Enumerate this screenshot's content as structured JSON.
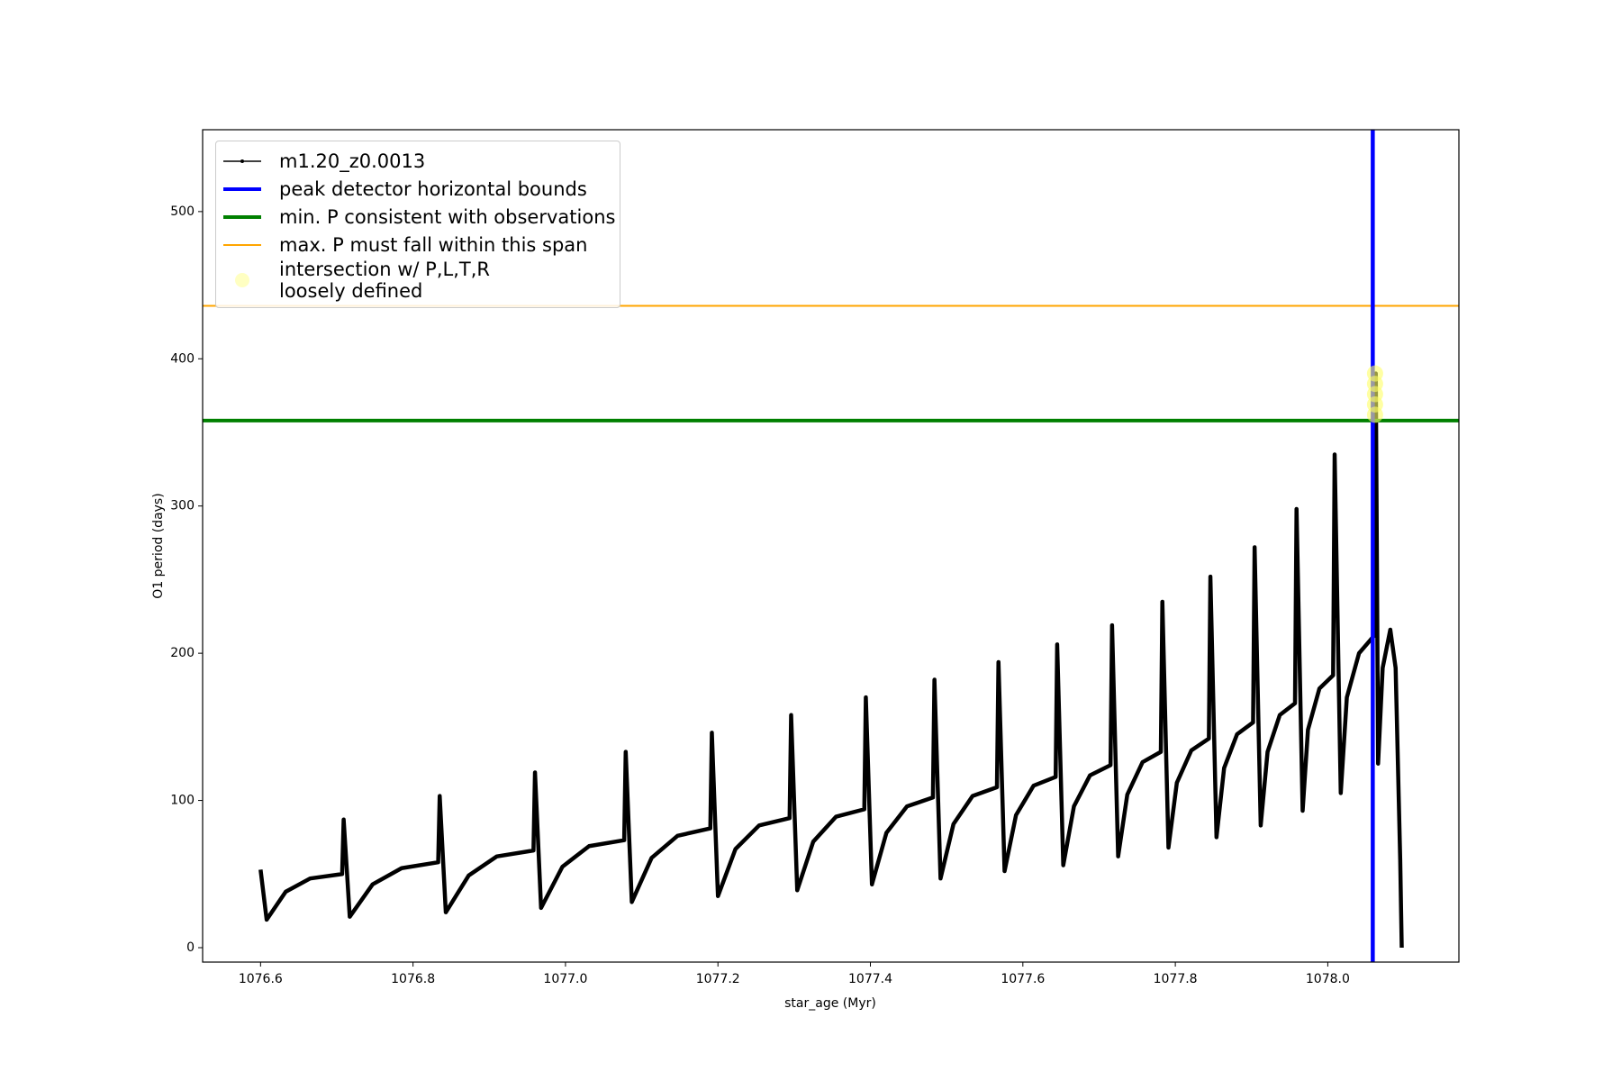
{
  "chart_data": {
    "type": "line",
    "xlabel": "star_age (Myr)",
    "ylabel": "O1 period (days)",
    "xlim": [
      1076.524,
      1078.172
    ],
    "ylim": [
      -9.8,
      555.6
    ],
    "xticks": [
      1076.6,
      1076.8,
      {
        "value": 1077,
        "label": "1077.0"
      },
      1077.2,
      1077.4,
      1077.6,
      1077.8,
      {
        "value": 1078,
        "label": "1078.0"
      }
    ],
    "yticks": [
      0,
      100,
      200,
      300,
      400,
      500
    ],
    "legend": "upper left",
    "series": [
      {
        "name": "m1.20_z0.0013",
        "color": "#000000",
        "x": [
          1076.6,
          1076.608,
          1076.633,
          1076.665,
          1076.707,
          1076.709,
          1076.717,
          1076.747,
          1076.785,
          1076.833,
          1076.835,
          1076.843,
          1076.873,
          1076.91,
          1076.958,
          1076.96,
          1076.968,
          1076.996,
          1077.031,
          1077.077,
          1077.079,
          1077.087,
          1077.113,
          1077.147,
          1077.19,
          1077.192,
          1077.2,
          1077.223,
          1077.254,
          1077.294,
          1077.296,
          1077.304,
          1077.325,
          1077.355,
          1077.392,
          1077.394,
          1077.402,
          1077.421,
          1077.448,
          1077.482,
          1077.484,
          1077.492,
          1077.509,
          1077.534,
          1077.566,
          1077.568,
          1077.576,
          1077.591,
          1077.614,
          1077.643,
          1077.645,
          1077.653,
          1077.667,
          1077.688,
          1077.715,
          1077.717,
          1077.725,
          1077.737,
          1077.757,
          1077.781,
          1077.783,
          1077.791,
          1077.802,
          1077.821,
          1077.844,
          1077.846,
          1077.854,
          1077.864,
          1077.881,
          1077.902,
          1077.904,
          1077.912,
          1077.921,
          1077.937,
          1077.957,
          1077.959,
          1077.967,
          1077.974,
          1077.989,
          1078.007,
          1078.009,
          1078.017,
          1078.025,
          1078.041,
          1078.061,
          1078.063,
          1078.066,
          1078.072,
          1078.082,
          1078.089,
          1078.095,
          1078.097
        ],
        "values": [
          53,
          19,
          38,
          47,
          50,
          87,
          21,
          43,
          54,
          58,
          103,
          24,
          49,
          62,
          66,
          119,
          27,
          55,
          69,
          73,
          133,
          31,
          61,
          76,
          81,
          146,
          35,
          67,
          83,
          88,
          158,
          39,
          72,
          89,
          94,
          170,
          43,
          78,
          96,
          102,
          182,
          47,
          84,
          103,
          109,
          194,
          52,
          90,
          110,
          116,
          206,
          56,
          96,
          117,
          124,
          219,
          62,
          104,
          126,
          133,
          235,
          68,
          112,
          134,
          142,
          252,
          75,
          122,
          145,
          153,
          272,
          83,
          133,
          158,
          166,
          298,
          93,
          148,
          176,
          185,
          335,
          105,
          170,
          200,
          212,
          390,
          125,
          190,
          216,
          190,
          60,
          0
        ]
      }
    ],
    "vlines": [
      {
        "name": "peak detector horizontal bounds",
        "color": "#0000ff",
        "x": 1078.059
      }
    ],
    "hlines": [
      {
        "name": "min. P consistent with observations",
        "color": "#008000",
        "y": 358
      },
      {
        "name": "max. P must fall within this span",
        "color": "#ffa500",
        "y": 436
      }
    ],
    "highlight": {
      "name": "intersection w/ P,L,T,R\nloosely defined",
      "color": "#ffff66",
      "x": [
        1078.062,
        1078.062,
        1078.062,
        1078.062,
        1078.062
      ],
      "values": [
        362,
        369,
        376,
        383,
        390
      ]
    }
  }
}
